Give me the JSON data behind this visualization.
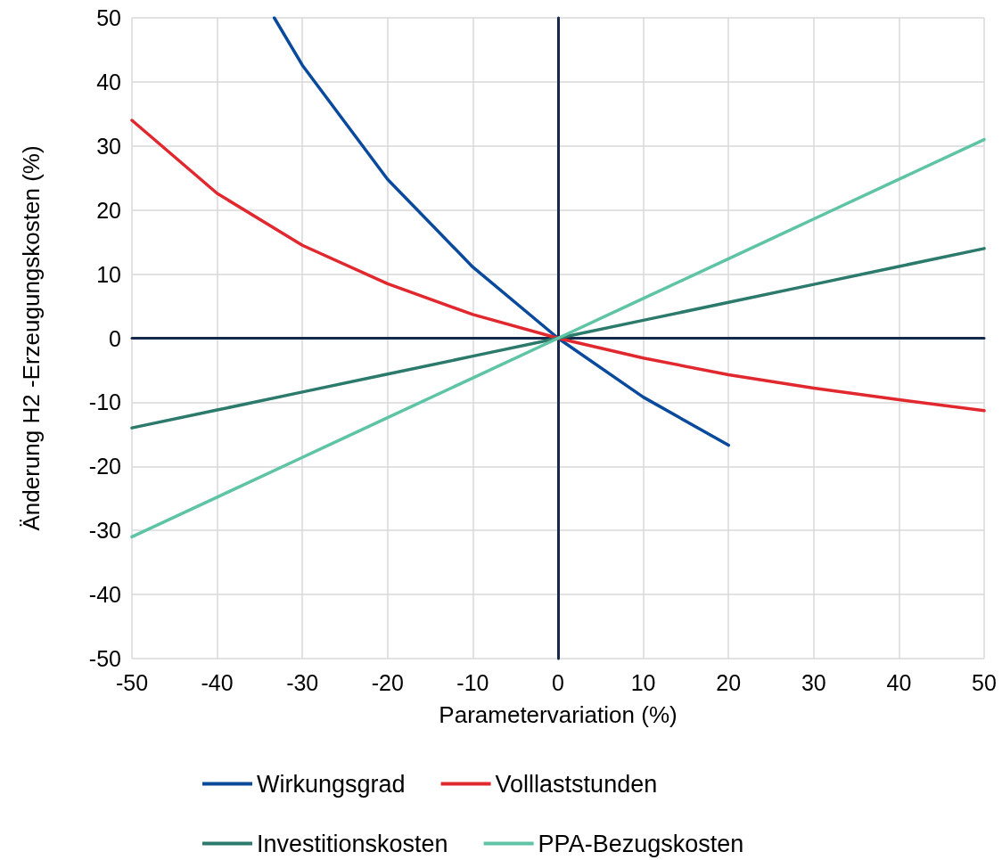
{
  "chart_data": {
    "type": "line",
    "xlabel": "Parametervariation (%)",
    "ylabel": "Änderung H2 -Erzeugungskosten (%)",
    "xlim": [
      -50,
      50
    ],
    "xticks": [
      -50,
      -40,
      -30,
      -20,
      -10,
      0,
      10,
      20,
      30,
      40,
      50
    ],
    "ylim": [
      -50,
      50
    ],
    "yticks": [
      -50,
      -40,
      -30,
      -20,
      -10,
      0,
      10,
      20,
      30,
      40,
      50
    ],
    "series": [
      {
        "name": "Wirkungsgrad",
        "color": "#0a4a9c",
        "x": [
          -33.3,
          -30,
          -20,
          -10,
          0,
          10,
          20
        ],
        "values": [
          50,
          42.6,
          24.8,
          11.1,
          0,
          -9.2,
          -16.7
        ]
      },
      {
        "name": "Volllaststunden",
        "color": "#e0282e",
        "x": [
          -50,
          -40,
          -30,
          -20,
          -10,
          0,
          10,
          20,
          30,
          40,
          50
        ],
        "values": [
          34,
          22.6,
          14.5,
          8.5,
          3.7,
          0,
          -3.1,
          -5.7,
          -7.8,
          -9.6,
          -11.3
        ]
      },
      {
        "name": "Investitionskosten",
        "color": "#2b7a6b",
        "x": [
          -50,
          -40,
          -30,
          -20,
          -10,
          0,
          10,
          20,
          30,
          40,
          50
        ],
        "values": [
          -14,
          -11.2,
          -8.4,
          -5.6,
          -2.8,
          0,
          2.8,
          5.6,
          8.4,
          11.2,
          14
        ]
      },
      {
        "name": "PPA-Bezugskosten",
        "color": "#5ec4a5",
        "x": [
          -50,
          -40,
          -30,
          -20,
          -10,
          0,
          10,
          20,
          30,
          40,
          50
        ],
        "values": [
          -31,
          -24.8,
          -18.6,
          -12.4,
          -6.2,
          0,
          6.2,
          12.4,
          18.6,
          24.8,
          31
        ]
      }
    ],
    "grid": true,
    "legend": "bottom",
    "marker": "none",
    "line_style": "solid"
  }
}
